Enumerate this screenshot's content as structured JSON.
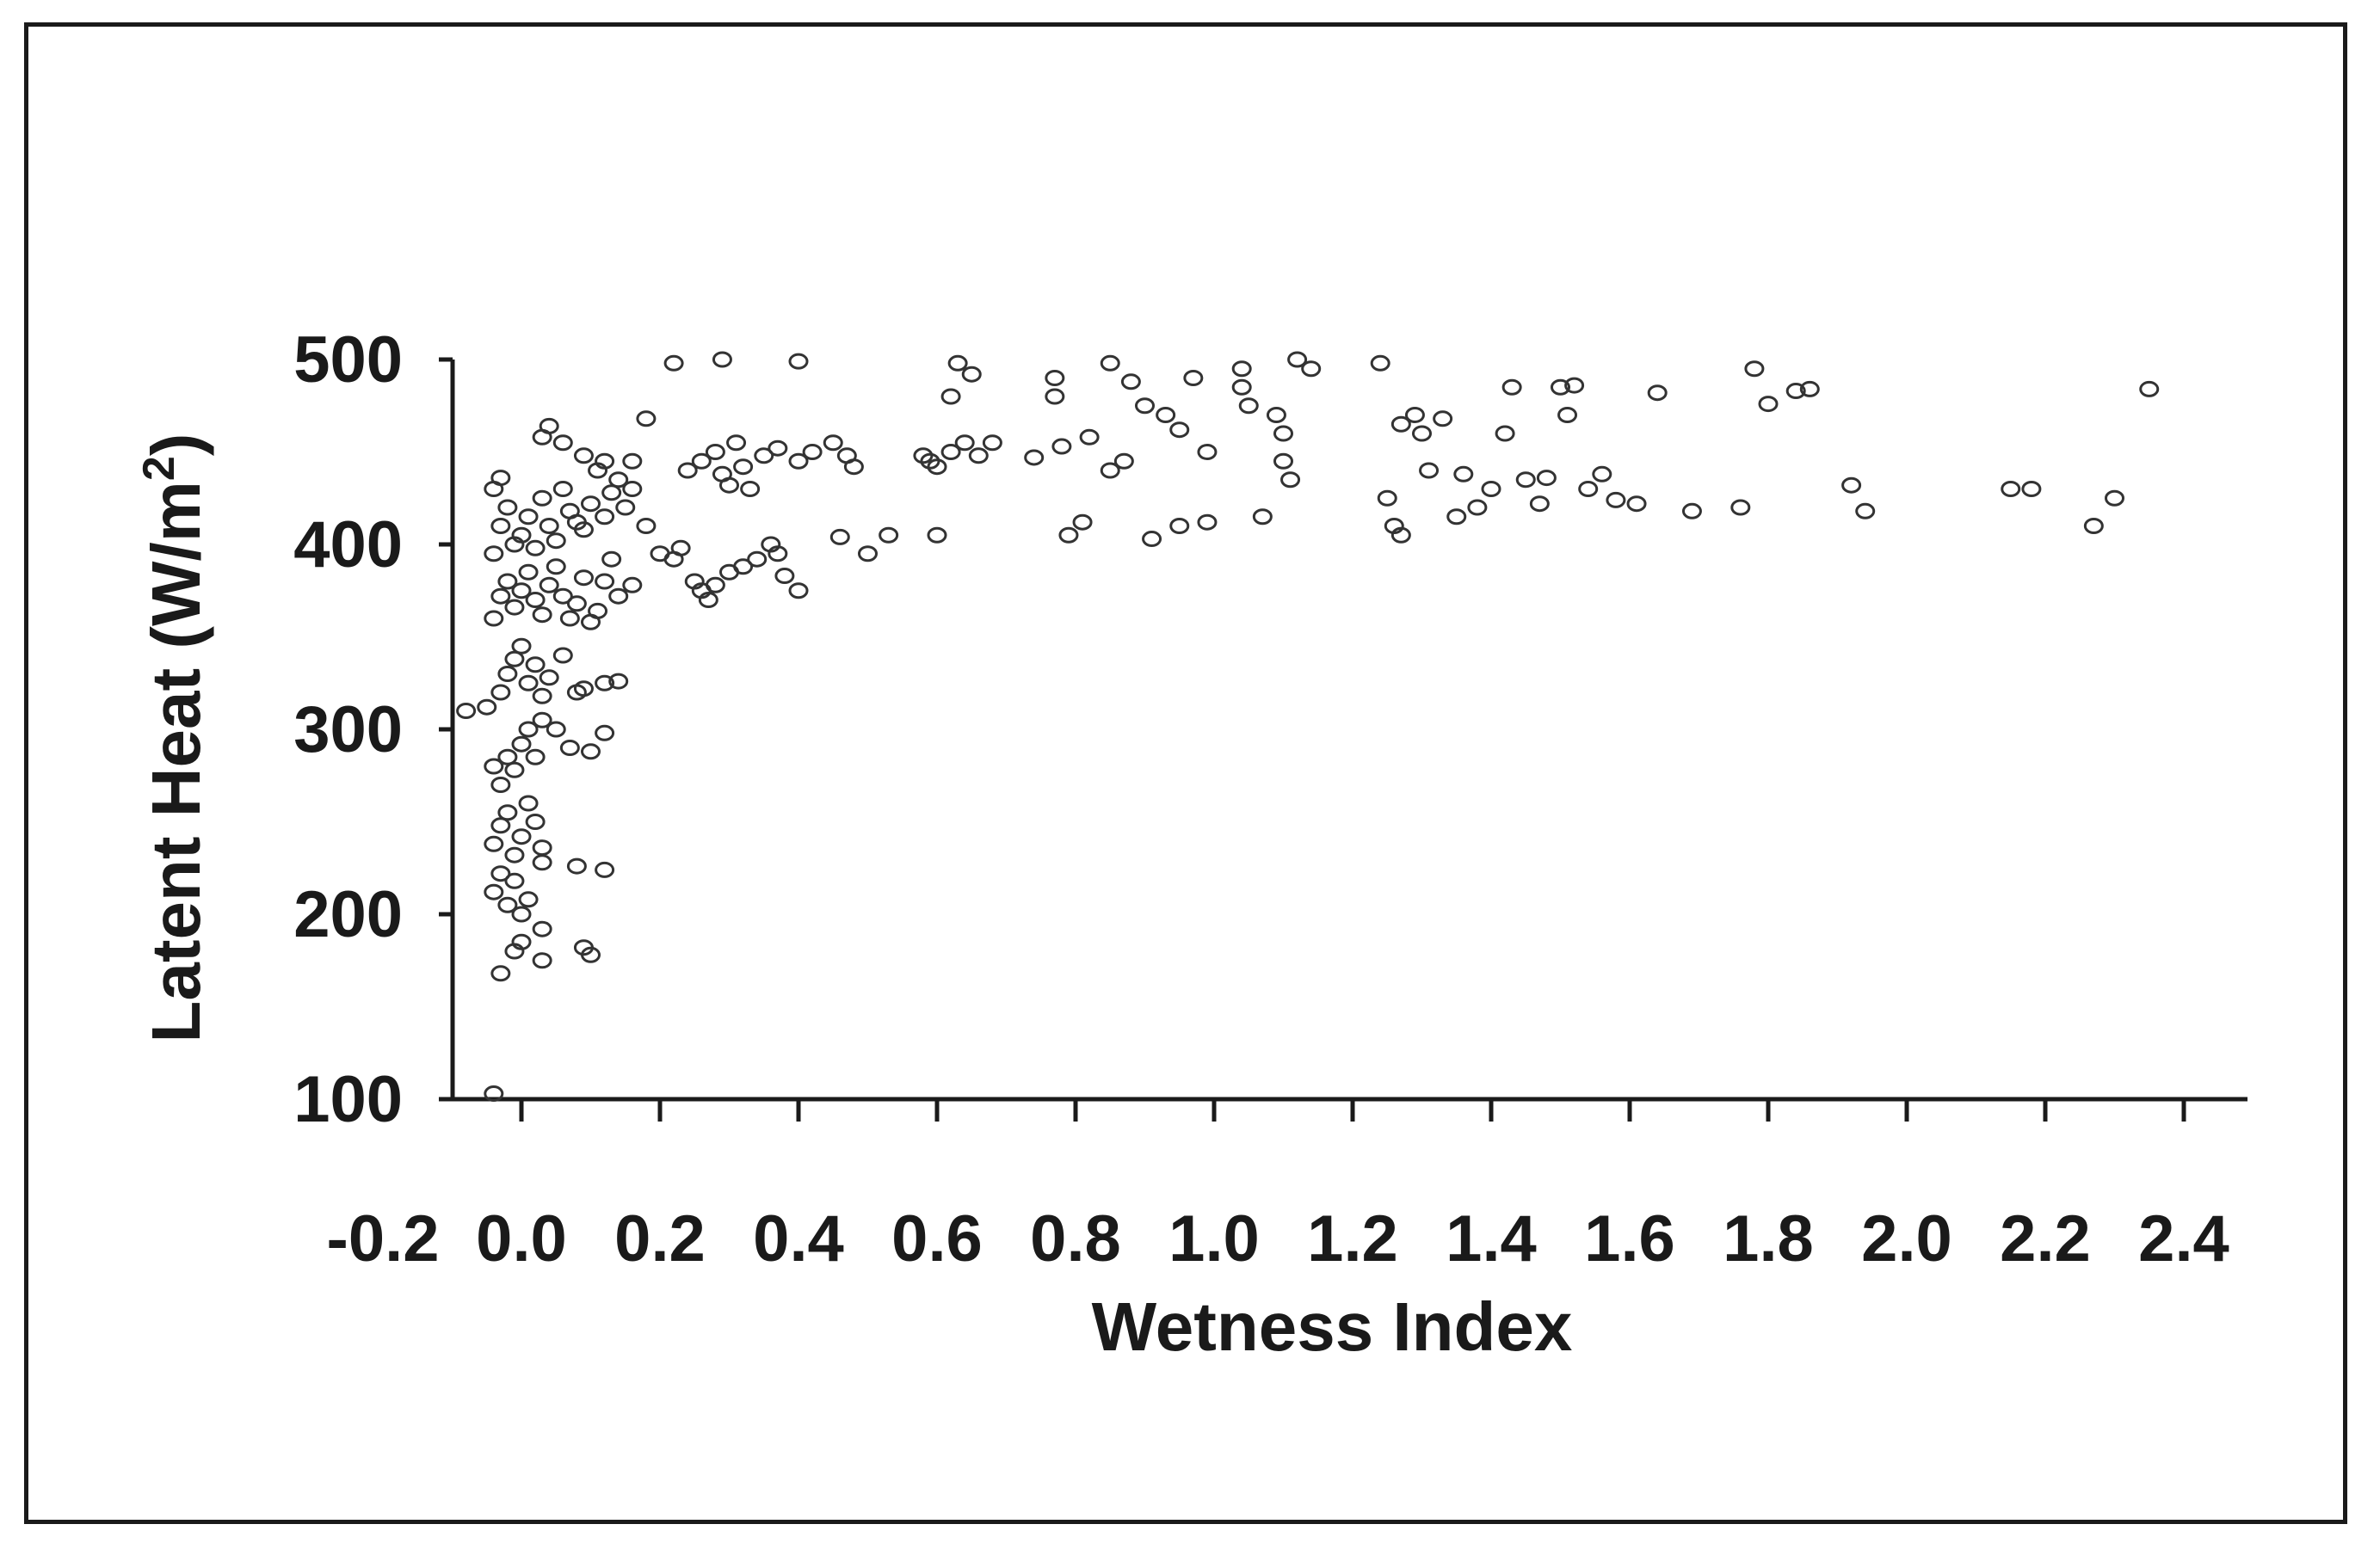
{
  "chart_data": {
    "type": "scatter",
    "title": "",
    "xlabel": "Wetness Index",
    "ylabel": "Latent Heat (W/m",
    "ylabel_superscript": "2",
    "ylabel_close": ")",
    "xlim": [
      -0.2,
      2.5
    ],
    "ylim": [
      100,
      500
    ],
    "x_ticks": [
      -0.2,
      0.0,
      0.2,
      0.4,
      0.6,
      0.8,
      1.0,
      1.2,
      1.4,
      1.6,
      1.8,
      2.0,
      2.2,
      2.4
    ],
    "x_tick_labels": [
      "-0.2",
      "0.0",
      "0.2",
      "0.4",
      "0.6",
      "0.8",
      "1.0",
      "1.2",
      "1.4",
      "1.6",
      "1.8",
      "2.0",
      "2.2",
      "2.4"
    ],
    "y_ticks": [
      100,
      200,
      300,
      400,
      500
    ],
    "y_tick_labels": [
      "100",
      "200",
      "300",
      "400",
      "500"
    ],
    "grid": false,
    "legend": "none",
    "marker": "open-circle",
    "marker_color": "#333333",
    "points": [
      [
        -0.04,
        103
      ],
      [
        -0.03,
        168
      ],
      [
        -0.01,
        180
      ],
      [
        0.0,
        185
      ],
      [
        0.03,
        175
      ],
      [
        0.03,
        192
      ],
      [
        0.09,
        182
      ],
      [
        0.1,
        178
      ],
      [
        -0.04,
        212
      ],
      [
        -0.03,
        222
      ],
      [
        -0.02,
        205
      ],
      [
        -0.01,
        218
      ],
      [
        0.0,
        200
      ],
      [
        0.01,
        208
      ],
      [
        -0.04,
        238
      ],
      [
        -0.03,
        248
      ],
      [
        -0.02,
        255
      ],
      [
        -0.01,
        232
      ],
      [
        0.0,
        242
      ],
      [
        0.01,
        260
      ],
      [
        0.02,
        250
      ],
      [
        0.03,
        236
      ],
      [
        0.03,
        228
      ],
      [
        0.08,
        226
      ],
      [
        0.12,
        224
      ],
      [
        -0.04,
        280
      ],
      [
        -0.03,
        270
      ],
      [
        -0.02,
        285
      ],
      [
        -0.01,
        278
      ],
      [
        0.0,
        292
      ],
      [
        0.01,
        300
      ],
      [
        0.02,
        285
      ],
      [
        0.03,
        305
      ],
      [
        0.05,
        300
      ],
      [
        0.07,
        290
      ],
      [
        0.1,
        288
      ],
      [
        0.12,
        298
      ],
      [
        -0.08,
        310
      ],
      [
        -0.05,
        312
      ],
      [
        -0.03,
        320
      ],
      [
        -0.02,
        330
      ],
      [
        -0.01,
        338
      ],
      [
        0.0,
        345
      ],
      [
        0.01,
        325
      ],
      [
        0.02,
        335
      ],
      [
        0.03,
        318
      ],
      [
        0.04,
        328
      ],
      [
        0.06,
        340
      ],
      [
        0.08,
        320
      ],
      [
        0.09,
        322
      ],
      [
        0.12,
        325
      ],
      [
        0.14,
        326
      ],
      [
        -0.04,
        360
      ],
      [
        -0.03,
        372
      ],
      [
        -0.02,
        380
      ],
      [
        -0.01,
        366
      ],
      [
        0.0,
        375
      ],
      [
        0.01,
        385
      ],
      [
        0.02,
        370
      ],
      [
        0.03,
        362
      ],
      [
        0.04,
        378
      ],
      [
        0.05,
        388
      ],
      [
        0.06,
        372
      ],
      [
        0.07,
        360
      ],
      [
        0.08,
        368
      ],
      [
        0.09,
        382
      ],
      [
        0.1,
        358
      ],
      [
        0.11,
        364
      ],
      [
        0.12,
        380
      ],
      [
        0.13,
        392
      ],
      [
        0.14,
        372
      ],
      [
        0.16,
        378
      ],
      [
        -0.04,
        395
      ],
      [
        -0.03,
        410
      ],
      [
        -0.02,
        420
      ],
      [
        -0.01,
        400
      ],
      [
        0.0,
        405
      ],
      [
        0.01,
        415
      ],
      [
        0.02,
        398
      ],
      [
        0.03,
        425
      ],
      [
        0.04,
        410
      ],
      [
        0.05,
        402
      ],
      [
        0.06,
        430
      ],
      [
        0.07,
        418
      ],
      [
        0.08,
        412
      ],
      [
        0.09,
        408
      ],
      [
        0.1,
        422
      ],
      [
        0.11,
        440
      ],
      [
        0.12,
        415
      ],
      [
        0.13,
        428
      ],
      [
        0.14,
        435
      ],
      [
        0.15,
        420
      ],
      [
        0.16,
        430
      ],
      [
        0.18,
        410
      ],
      [
        -0.04,
        430
      ],
      [
        -0.03,
        436
      ],
      [
        0.03,
        458
      ],
      [
        0.04,
        464
      ],
      [
        0.06,
        455
      ],
      [
        0.09,
        448
      ],
      [
        0.12,
        445
      ],
      [
        0.16,
        445
      ],
      [
        0.18,
        468
      ],
      [
        0.2,
        395
      ],
      [
        0.22,
        392
      ],
      [
        0.23,
        398
      ],
      [
        0.25,
        380
      ],
      [
        0.26,
        375
      ],
      [
        0.27,
        370
      ],
      [
        0.28,
        378
      ],
      [
        0.3,
        385
      ],
      [
        0.32,
        388
      ],
      [
        0.34,
        392
      ],
      [
        0.36,
        400
      ],
      [
        0.37,
        395
      ],
      [
        0.38,
        383
      ],
      [
        0.4,
        375
      ],
      [
        0.24,
        440
      ],
      [
        0.26,
        445
      ],
      [
        0.28,
        450
      ],
      [
        0.29,
        438
      ],
      [
        0.3,
        432
      ],
      [
        0.31,
        455
      ],
      [
        0.32,
        442
      ],
      [
        0.33,
        430
      ],
      [
        0.35,
        448
      ],
      [
        0.37,
        452
      ],
      [
        0.4,
        445
      ],
      [
        0.42,
        450
      ],
      [
        0.45,
        455
      ],
      [
        0.47,
        448
      ],
      [
        0.48,
        442
      ],
      [
        0.22,
        498
      ],
      [
        0.29,
        500
      ],
      [
        0.4,
        499
      ],
      [
        0.5,
        395
      ],
      [
        0.53,
        405
      ],
      [
        0.46,
        404
      ],
      [
        0.58,
        448
      ],
      [
        0.59,
        445
      ],
      [
        0.6,
        442
      ],
      [
        0.62,
        450
      ],
      [
        0.64,
        455
      ],
      [
        0.66,
        448
      ],
      [
        0.68,
        455
      ],
      [
        0.6,
        405
      ],
      [
        0.62,
        480
      ],
      [
        0.63,
        498
      ],
      [
        0.65,
        492
      ],
      [
        0.74,
        447
      ],
      [
        0.77,
        480
      ],
      [
        0.77,
        490
      ],
      [
        0.78,
        453
      ],
      [
        0.79,
        405
      ],
      [
        0.81,
        412
      ],
      [
        0.82,
        458
      ],
      [
        0.85,
        440
      ],
      [
        0.87,
        445
      ],
      [
        0.85,
        498
      ],
      [
        0.88,
        488
      ],
      [
        0.9,
        475
      ],
      [
        0.91,
        403
      ],
      [
        0.93,
        470
      ],
      [
        0.95,
        410
      ],
      [
        0.95,
        462
      ],
      [
        0.97,
        490
      ],
      [
        0.99,
        412
      ],
      [
        0.99,
        450
      ],
      [
        1.04,
        495
      ],
      [
        1.04,
        485
      ],
      [
        1.05,
        475
      ],
      [
        1.07,
        415
      ],
      [
        1.09,
        470
      ],
      [
        1.1,
        460
      ],
      [
        1.1,
        445
      ],
      [
        1.11,
        435
      ],
      [
        1.12,
        500
      ],
      [
        1.14,
        495
      ],
      [
        1.24,
        498
      ],
      [
        1.25,
        425
      ],
      [
        1.26,
        410
      ],
      [
        1.27,
        405
      ],
      [
        1.27,
        465
      ],
      [
        1.29,
        470
      ],
      [
        1.3,
        460
      ],
      [
        1.31,
        440
      ],
      [
        1.33,
        468
      ],
      [
        1.35,
        415
      ],
      [
        1.36,
        438
      ],
      [
        1.38,
        420
      ],
      [
        1.4,
        430
      ],
      [
        1.42,
        460
      ],
      [
        1.43,
        485
      ],
      [
        1.45,
        435
      ],
      [
        1.47,
        422
      ],
      [
        1.48,
        436
      ],
      [
        1.5,
        485
      ],
      [
        1.51,
        470
      ],
      [
        1.52,
        486
      ],
      [
        1.54,
        430
      ],
      [
        1.56,
        438
      ],
      [
        1.58,
        424
      ],
      [
        1.61,
        422
      ],
      [
        1.64,
        482
      ],
      [
        1.69,
        418
      ],
      [
        1.76,
        420
      ],
      [
        1.78,
        495
      ],
      [
        1.8,
        476
      ],
      [
        1.84,
        483
      ],
      [
        1.86,
        484
      ],
      [
        1.92,
        432
      ],
      [
        1.94,
        418
      ],
      [
        2.15,
        430
      ],
      [
        2.18,
        430
      ],
      [
        2.27,
        410
      ],
      [
        2.3,
        425
      ],
      [
        2.35,
        484
      ]
    ]
  }
}
